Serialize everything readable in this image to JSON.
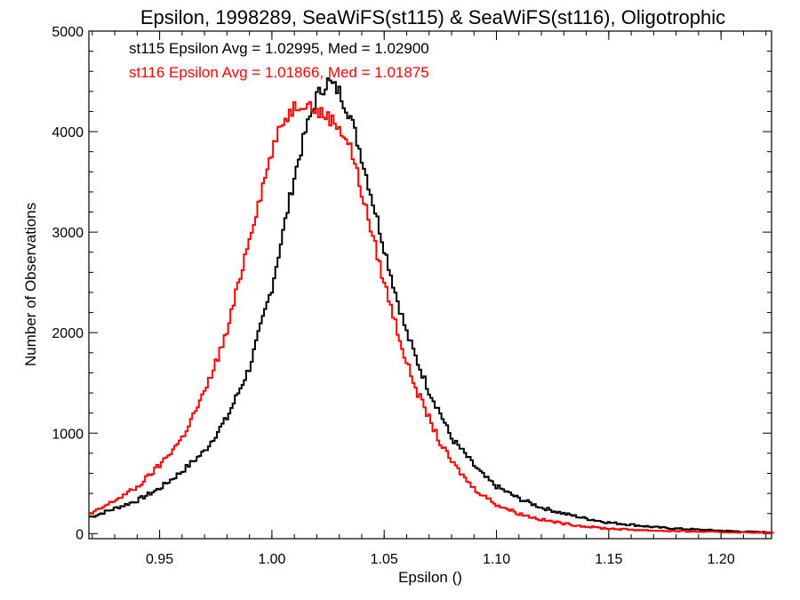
{
  "chart_data": {
    "type": "line",
    "title": "Epsilon, 1998289, SeaWiFS(st115) & SeaWiFS(st116), Oligotrophic",
    "xlabel": "Epsilon ()",
    "ylabel": "Number of Observations",
    "xlim": [
      0.9185,
      1.2225
    ],
    "ylim": [
      -50,
      5000
    ],
    "xticks": [
      0.95,
      1.0,
      1.05,
      1.1,
      1.15,
      1.2
    ],
    "xtick_labels": [
      "0.95",
      "1.00",
      "1.05",
      "1.10",
      "1.15",
      "1.20"
    ],
    "yticks": [
      0,
      1000,
      2000,
      3000,
      4000,
      5000
    ],
    "ytick_labels": [
      "0",
      "1000",
      "2000",
      "3000",
      "4000",
      "5000"
    ],
    "grid": false,
    "step": "histogram",
    "annotations": [
      {
        "text": "st115 Epsilon Avg = 1.02995, Med = 1.02900",
        "color": "#000000"
      },
      {
        "text": "st116 Epsilon Avg = 1.01866, Med = 1.01875",
        "color": "#ff0000"
      }
    ],
    "series": [
      {
        "color": "#000000",
        "x": [
          0.92,
          0.93,
          0.94,
          0.95,
          0.96,
          0.97,
          0.98,
          0.99,
          1.0,
          1.005,
          1.01,
          1.015,
          1.02,
          1.025,
          1.03,
          1.035,
          1.04,
          1.045,
          1.05,
          1.055,
          1.06,
          1.065,
          1.07,
          1.075,
          1.08,
          1.085,
          1.09,
          1.095,
          1.1,
          1.11,
          1.12,
          1.13,
          1.14,
          1.15,
          1.16,
          1.17,
          1.18,
          1.19,
          1.2,
          1.21,
          1.22
        ],
        "y": [
          170,
          250,
          330,
          450,
          620,
          820,
          1150,
          1650,
          2450,
          3000,
          3550,
          4000,
          4350,
          4500,
          4400,
          4150,
          3750,
          3300,
          2850,
          2400,
          2000,
          1700,
          1420,
          1200,
          950,
          820,
          680,
          560,
          470,
          350,
          260,
          200,
          150,
          110,
          90,
          65,
          50,
          40,
          30,
          20,
          15
        ]
      },
      {
        "color": "#ff0000",
        "x": [
          0.92,
          0.93,
          0.94,
          0.95,
          0.96,
          0.97,
          0.98,
          0.99,
          1.0,
          1.005,
          1.01,
          1.015,
          1.02,
          1.025,
          1.03,
          1.035,
          1.04,
          1.045,
          1.05,
          1.055,
          1.06,
          1.065,
          1.07,
          1.075,
          1.08,
          1.085,
          1.09,
          1.095,
          1.1,
          1.11,
          1.12,
          1.13,
          1.14,
          1.15,
          1.16,
          1.17,
          1.18,
          1.19,
          1.2,
          1.21,
          1.22
        ],
        "y": [
          200,
          330,
          460,
          680,
          950,
          1400,
          2000,
          2950,
          3800,
          4100,
          4250,
          4300,
          4200,
          4150,
          4050,
          3850,
          3400,
          2950,
          2500,
          2100,
          1700,
          1400,
          1150,
          900,
          720,
          580,
          450,
          370,
          290,
          200,
          140,
          100,
          70,
          50,
          40,
          30,
          25,
          20,
          15,
          12,
          10
        ]
      }
    ]
  }
}
